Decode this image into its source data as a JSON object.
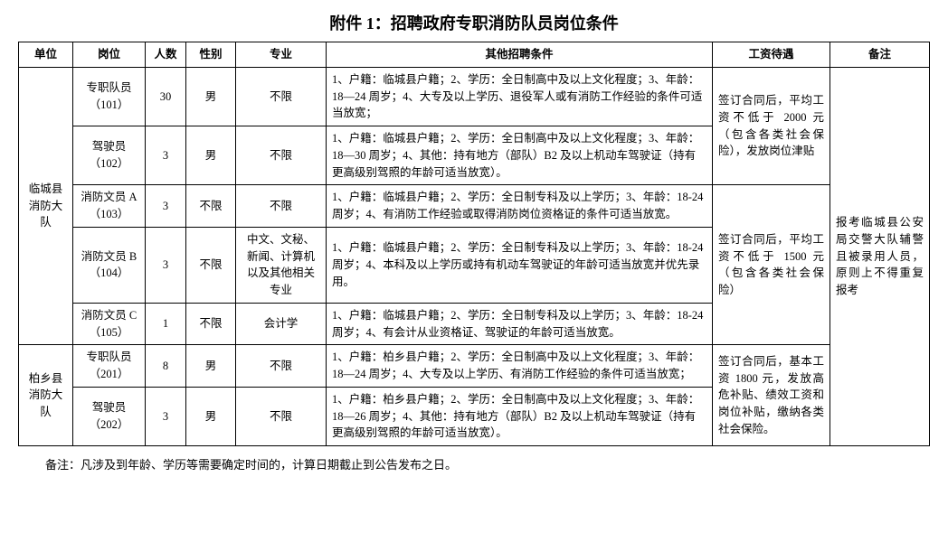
{
  "title": "附件 1：招聘政府专职消防队员岗位条件",
  "headers": {
    "unit": "单位",
    "post": "岗位",
    "num": "人数",
    "gender": "性别",
    "major": "专业",
    "cond": "其他招聘条件",
    "salary": "工资待遇",
    "note": "备注"
  },
  "unit1": "临城县消防大队",
  "unit2": "柏乡县消防大队",
  "r101": {
    "post": "专职队员（101）",
    "num": "30",
    "gender": "男",
    "major": "不限",
    "cond": "1、户籍：临城县户籍；2、学历：全日制高中及以上文化程度；3、年龄：18—24 周岁；4、大专及以上学历、退役军人或有消防工作经验的条件可适当放宽；"
  },
  "r102": {
    "post": "驾驶员（102）",
    "num": "3",
    "gender": "男",
    "major": "不限",
    "cond": "1、户籍：临城县户籍；2、学历：全日制高中及以上文化程度；3、年龄：18—30 周岁；4、其他：持有地方（部队）B2 及以上机动车驾驶证（持有更高级别驾照的年龄可适当放宽）。"
  },
  "r103": {
    "post": "消防文员 A（103）",
    "num": "3",
    "gender": "不限",
    "major": "不限",
    "cond": "1、户籍：临城县户籍；2、学历：全日制专科及以上学历；3、年龄：18-24 周岁；4、有消防工作经验或取得消防岗位资格证的条件可适当放宽。"
  },
  "r104": {
    "post": "消防文员 B（104）",
    "num": "3",
    "gender": "不限",
    "major": "中文、文秘、新闻、计算机以及其他相关专业",
    "cond": "1、户籍：临城县户籍；2、学历：全日制专科及以上学历；3、年龄：18-24 周岁；4、本科及以上学历或持有机动车驾驶证的年龄可适当放宽并优先录用。"
  },
  "r105": {
    "post": "消防文员 C（105）",
    "num": "1",
    "gender": "不限",
    "major": "会计学",
    "cond": "1、户籍：临城县户籍；2、学历：全日制专科及以上学历；3、年龄：18-24 周岁；4、有会计从业资格证、驾驶证的年龄可适当放宽。"
  },
  "r201": {
    "post": "专职队员（201）",
    "num": "8",
    "gender": "男",
    "major": "不限",
    "cond": "1、户籍：柏乡县户籍；2、学历：全日制高中及以上文化程度；3、年龄：18—24 周岁；4、大专及以上学历、有消防工作经验的条件可适当放宽；"
  },
  "r202": {
    "post": "驾驶员（202）",
    "num": "3",
    "gender": "男",
    "major": "不限",
    "cond": "1、户籍：柏乡县户籍；2、学历：全日制高中及以上文化程度；3、年龄：18—26 周岁；4、其他：持有地方（部队）B2 及以上机动车驾驶证（持有更高级别驾照的年龄可适当放宽）。"
  },
  "salary1": "签订合同后，平均工资不低于 2000 元（包含各类社会保险），发放岗位津贴",
  "salary2": "签订合同后，平均工资不低于 1500 元（包含各类社会保险）",
  "salary3": "签订合同后，基本工资 1800 元，发放高危补贴、绩效工资和岗位补贴，缴纳各类社会保险。",
  "note_all": "报考临城县公安局交警大队辅警且被录用人员，原则上不得重复报考",
  "footnote": "备注：凡涉及到年龄、学历等需要确定时间的，计算日期截止到公告发布之日。"
}
